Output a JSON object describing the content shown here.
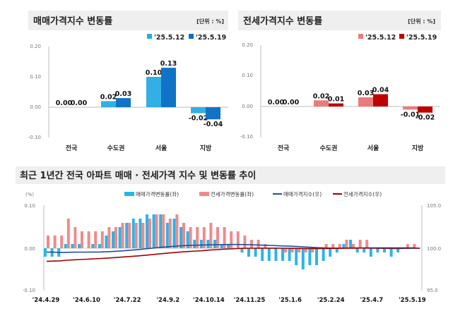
{
  "colors": {
    "sale_light": "#29abe2",
    "sale_dark": "#0b6fc4",
    "jeonse_light": "#f08080",
    "jeonse_dark": "#c00000",
    "sale_bar": "#29b6e8",
    "jeonse_bar": "#f08a8a",
    "sale_index_line": "#1f4e9c",
    "jeonse_index_line": "#a00000",
    "title_bg": "#efefef"
  },
  "chart_data": [
    {
      "type": "bar",
      "title": "매매가격지수 변동률",
      "unit": "[단위 : %]",
      "categories": [
        "전국",
        "수도권",
        "서울",
        "지방"
      ],
      "series": [
        {
          "name": "'25.5.12",
          "values": [
            0.0,
            0.02,
            0.1,
            -0.02
          ],
          "labels": [
            "0.00",
            "0.02",
            "0.10",
            "-0.02"
          ]
        },
        {
          "name": "'25.5.19",
          "values": [
            0.0,
            0.03,
            0.13,
            -0.04
          ],
          "labels": [
            "0.00",
            "0.03",
            "0.13",
            "-0.04"
          ]
        }
      ],
      "ylim": [
        -0.1,
        0.2
      ],
      "y_tick_labels": [
        "0.20",
        "0.10",
        "0.00",
        "-0.10"
      ],
      "legend": "top-right",
      "grid": false
    },
    {
      "type": "bar",
      "title": "전세가격지수 변동률",
      "unit": "[단위 : %]",
      "categories": [
        "전국",
        "수도권",
        "서울",
        "지방"
      ],
      "series": [
        {
          "name": "'25.5.12",
          "values": [
            0.0,
            0.02,
            0.03,
            -0.01
          ],
          "labels": [
            "0.00",
            "0.02",
            "0.03",
            "-0.01"
          ]
        },
        {
          "name": "'25.5.19",
          "values": [
            0.0,
            0.01,
            0.04,
            -0.02
          ],
          "labels": [
            "0.00",
            "0.01",
            "0.04",
            "-0.02"
          ]
        }
      ],
      "ylim": [
        -0.1,
        0.2
      ],
      "y_tick_labels": [
        "0.20",
        "0.10",
        "0.00",
        "-0.10"
      ],
      "legend": "top-right",
      "grid": false
    },
    {
      "type": "bar+line",
      "title": "최근 1년간 전국 아파트 매매 · 전세가격 지수 및 변동률 추이",
      "ylabel_left": "(%)",
      "ylim_left": [
        -0.1,
        0.1
      ],
      "ylim_right": [
        95.0,
        105.0
      ],
      "y_tick_labels_left": [
        "0.10",
        "0.00",
        "-0.10"
      ],
      "y_tick_labels_right": [
        "105.0",
        "100.0",
        "95.0"
      ],
      "x_range": [
        "'24.4.29",
        "'25.5.19"
      ],
      "x_tick_labels": [
        "'24.4.29",
        "'24.6.10",
        "'24.7.22",
        "'24.9.2",
        "'24.10.14",
        "'24.11.25",
        "'25.1.6",
        "'25.2.24",
        "'25.4.7",
        "'25.5.19"
      ],
      "legend": "top",
      "grid": false,
      "series": [
        {
          "name": "매매가격변동률(좌)",
          "kind": "bar",
          "axis": "left",
          "values": [
            -0.02,
            -0.02,
            -0.02,
            0.01,
            0.01,
            0.01,
            0.0,
            0.01,
            0.01,
            0.03,
            0.04,
            0.05,
            0.06,
            0.07,
            0.07,
            0.08,
            0.08,
            0.08,
            0.06,
            0.07,
            0.05,
            0.04,
            0.02,
            0.02,
            0.02,
            0.02,
            0.01,
            0.01,
            0.0,
            -0.01,
            -0.02,
            -0.02,
            -0.03,
            -0.03,
            -0.03,
            -0.03,
            -0.03,
            -0.04,
            -0.05,
            -0.04,
            -0.04,
            -0.03,
            -0.02,
            -0.01,
            0.01,
            0.02,
            -0.01,
            -0.01,
            -0.02,
            -0.01,
            -0.01,
            -0.02,
            -0.01,
            0.0,
            0.0,
            0.0
          ]
        },
        {
          "name": "전세가격변동률(좌)",
          "kind": "bar",
          "axis": "left",
          "values": [
            0.03,
            0.03,
            0.03,
            0.07,
            0.05,
            0.04,
            0.04,
            0.04,
            0.04,
            0.05,
            0.05,
            0.06,
            0.06,
            0.06,
            0.06,
            0.07,
            0.08,
            0.08,
            0.07,
            0.08,
            0.06,
            0.05,
            0.05,
            0.05,
            0.06,
            0.05,
            0.05,
            0.04,
            0.04,
            0.03,
            0.02,
            0.02,
            0.01,
            0.0,
            0.0,
            -0.01,
            -0.01,
            -0.01,
            -0.01,
            -0.01,
            0.0,
            0.01,
            0.01,
            0.01,
            0.02,
            0.01,
            0.02,
            0.02,
            0.0,
            0.0,
            0.0,
            0.0,
            0.0,
            0.01,
            0.01,
            0.0
          ]
        },
        {
          "name": "매매가격지수(우)",
          "kind": "line",
          "axis": "right",
          "values": [
            99.55,
            99.53,
            99.51,
            99.52,
            99.53,
            99.54,
            99.54,
            99.55,
            99.56,
            99.59,
            99.63,
            99.68,
            99.74,
            99.81,
            99.88,
            99.96,
            100.04,
            100.12,
            100.18,
            100.25,
            100.3,
            100.34,
            100.36,
            100.38,
            100.4,
            100.42,
            100.43,
            100.44,
            100.44,
            100.43,
            100.41,
            100.39,
            100.36,
            100.33,
            100.3,
            100.27,
            100.24,
            100.2,
            100.15,
            100.11,
            100.07,
            100.04,
            100.02,
            100.01,
            100.02,
            100.04,
            100.03,
            100.02,
            100.0,
            99.99,
            99.98,
            99.97,
            99.97,
            99.98,
            99.99,
            100.0
          ]
        },
        {
          "name": "전세가격지수(우)",
          "kind": "line",
          "axis": "right",
          "values": [
            98.45,
            98.48,
            98.51,
            98.58,
            98.63,
            98.67,
            98.71,
            98.75,
            98.79,
            98.84,
            98.89,
            98.95,
            99.01,
            99.07,
            99.13,
            99.2,
            99.28,
            99.36,
            99.43,
            99.51,
            99.57,
            99.62,
            99.67,
            99.72,
            99.78,
            99.83,
            99.88,
            99.92,
            99.96,
            99.99,
            100.0,
            100.01,
            100.01,
            100.01,
            100.01,
            100.0,
            99.99,
            99.98,
            99.97,
            99.97,
            99.97,
            99.97,
            99.98,
            99.99,
            100.0,
            100.01,
            100.02,
            100.03,
            100.03,
            100.03,
            100.03,
            100.03,
            100.03,
            100.04,
            100.04,
            100.0
          ]
        }
      ]
    }
  ]
}
